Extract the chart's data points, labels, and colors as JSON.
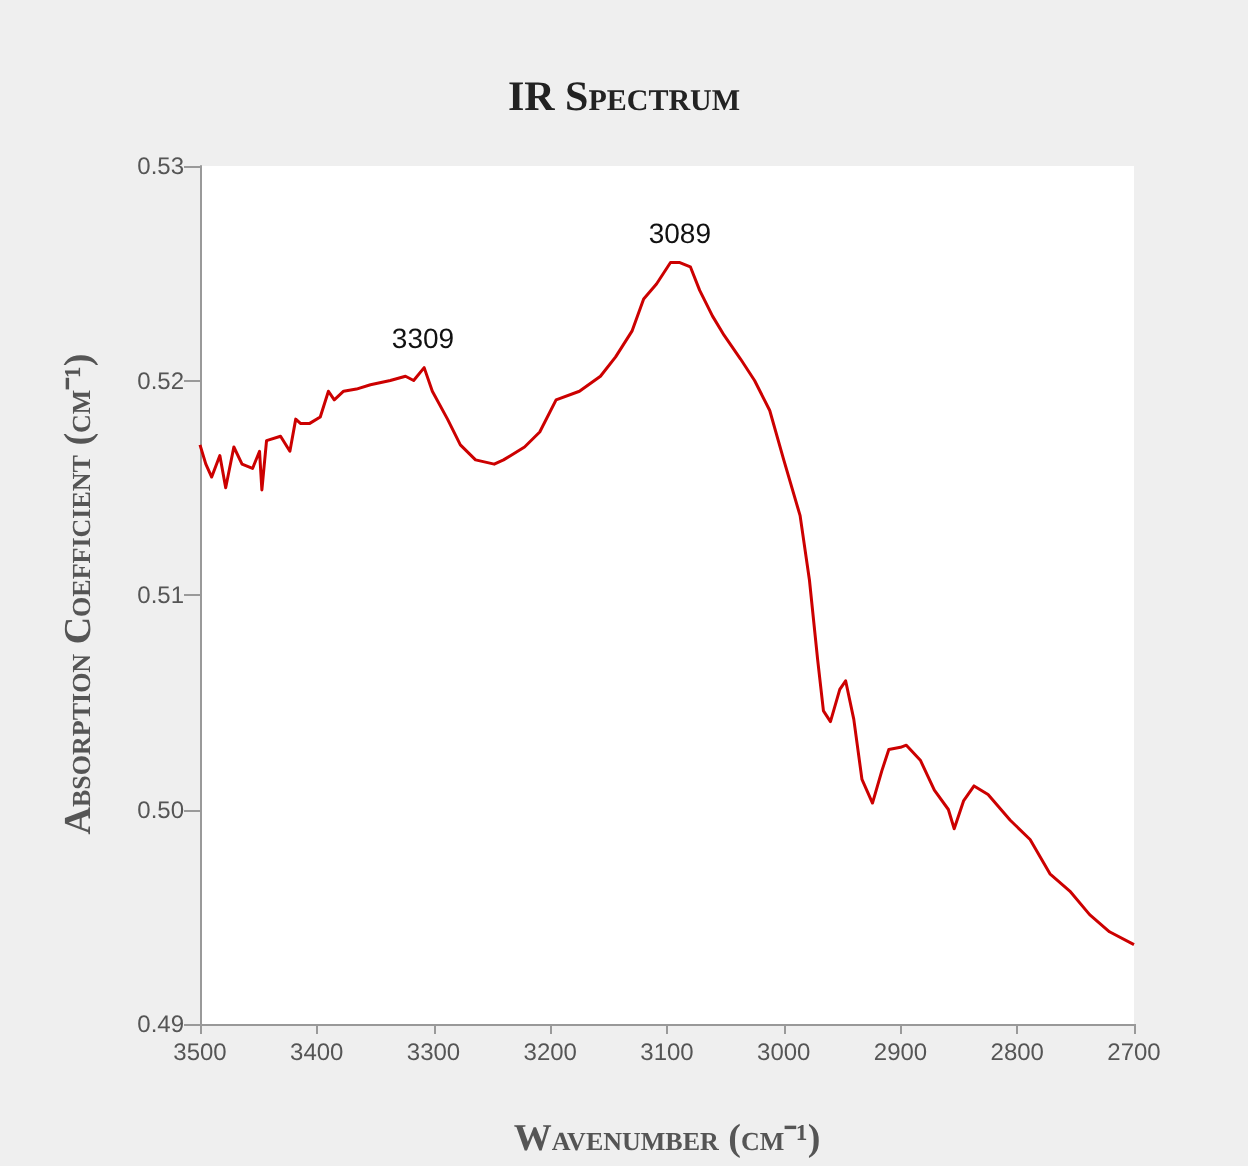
{
  "chart_data": {
    "type": "line",
    "title": "IR Spectrum",
    "xlabel": "Wavenumber (cm⁻¹)",
    "ylabel": "Absorption Coefficient (cm⁻¹)",
    "x": [
      3500,
      3495,
      3490,
      3483,
      3478,
      3471,
      3464,
      3455,
      3449,
      3447,
      3443,
      3431,
      3423,
      3418,
      3414,
      3406,
      3397,
      3390,
      3385,
      3377,
      3366,
      3354,
      3337,
      3324,
      3317,
      3308,
      3301,
      3288,
      3277,
      3264,
      3248,
      3240,
      3222,
      3209,
      3195,
      3175,
      3157,
      3144,
      3130,
      3120,
      3109,
      3097,
      3089,
      3080,
      3072,
      3061,
      3051,
      3037,
      3025,
      3012,
      3000,
      2986,
      2978,
      2971,
      2966,
      2960,
      2952,
      2947,
      2940,
      2933,
      2924,
      2916,
      2910,
      2900,
      2895,
      2883,
      2871,
      2859,
      2854,
      2846,
      2837,
      2825,
      2806,
      2789,
      2772,
      2755,
      2738,
      2721,
      2700
    ],
    "series": [
      {
        "color": "#cc0000",
        "values": [
          0.517,
          0.5161,
          0.5155,
          0.5165,
          0.515,
          0.5169,
          0.5161,
          0.5159,
          0.5167,
          0.5149,
          0.5172,
          0.5174,
          0.5167,
          0.5182,
          0.518,
          0.518,
          0.5183,
          0.5195,
          0.5191,
          0.5195,
          0.5196,
          0.5198,
          0.52,
          0.5202,
          0.52,
          0.5206,
          0.5195,
          0.5182,
          0.517,
          0.5163,
          0.5161,
          0.5163,
          0.5169,
          0.5176,
          0.5191,
          0.5195,
          0.5202,
          0.5211,
          0.5223,
          0.5238,
          0.5245,
          0.5255,
          0.5255,
          0.5253,
          0.5242,
          0.523,
          0.5221,
          0.521,
          0.52,
          0.5186,
          0.5163,
          0.5137,
          0.5107,
          0.507,
          0.5046,
          0.5041,
          0.5056,
          0.506,
          0.5042,
          0.5014,
          0.5003,
          0.5018,
          0.5028,
          0.5029,
          0.503,
          0.5023,
          0.5009,
          0.5,
          0.4991,
          0.5004,
          0.5011,
          0.5007,
          0.4995,
          0.4986,
          0.497,
          0.4962,
          0.4951,
          0.4943,
          0.4937
        ]
      }
    ],
    "annotations": [
      {
        "text": "3309",
        "x": 3309,
        "y": 0.5206
      },
      {
        "text": "3089",
        "x": 3089,
        "y": 0.5255
      }
    ],
    "xlim": [
      3500,
      2700
    ],
    "xticks": [
      3500,
      3400,
      3300,
      3200,
      3100,
      3000,
      2900,
      2800,
      2700
    ],
    "ylim": [
      0.49,
      0.53
    ],
    "yticks": [
      0.49,
      {
        "value": 0.5,
        "label": "0.50"
      },
      0.51,
      0.52,
      0.53
    ],
    "grid": false,
    "marker": "none",
    "line_style": "solid"
  }
}
